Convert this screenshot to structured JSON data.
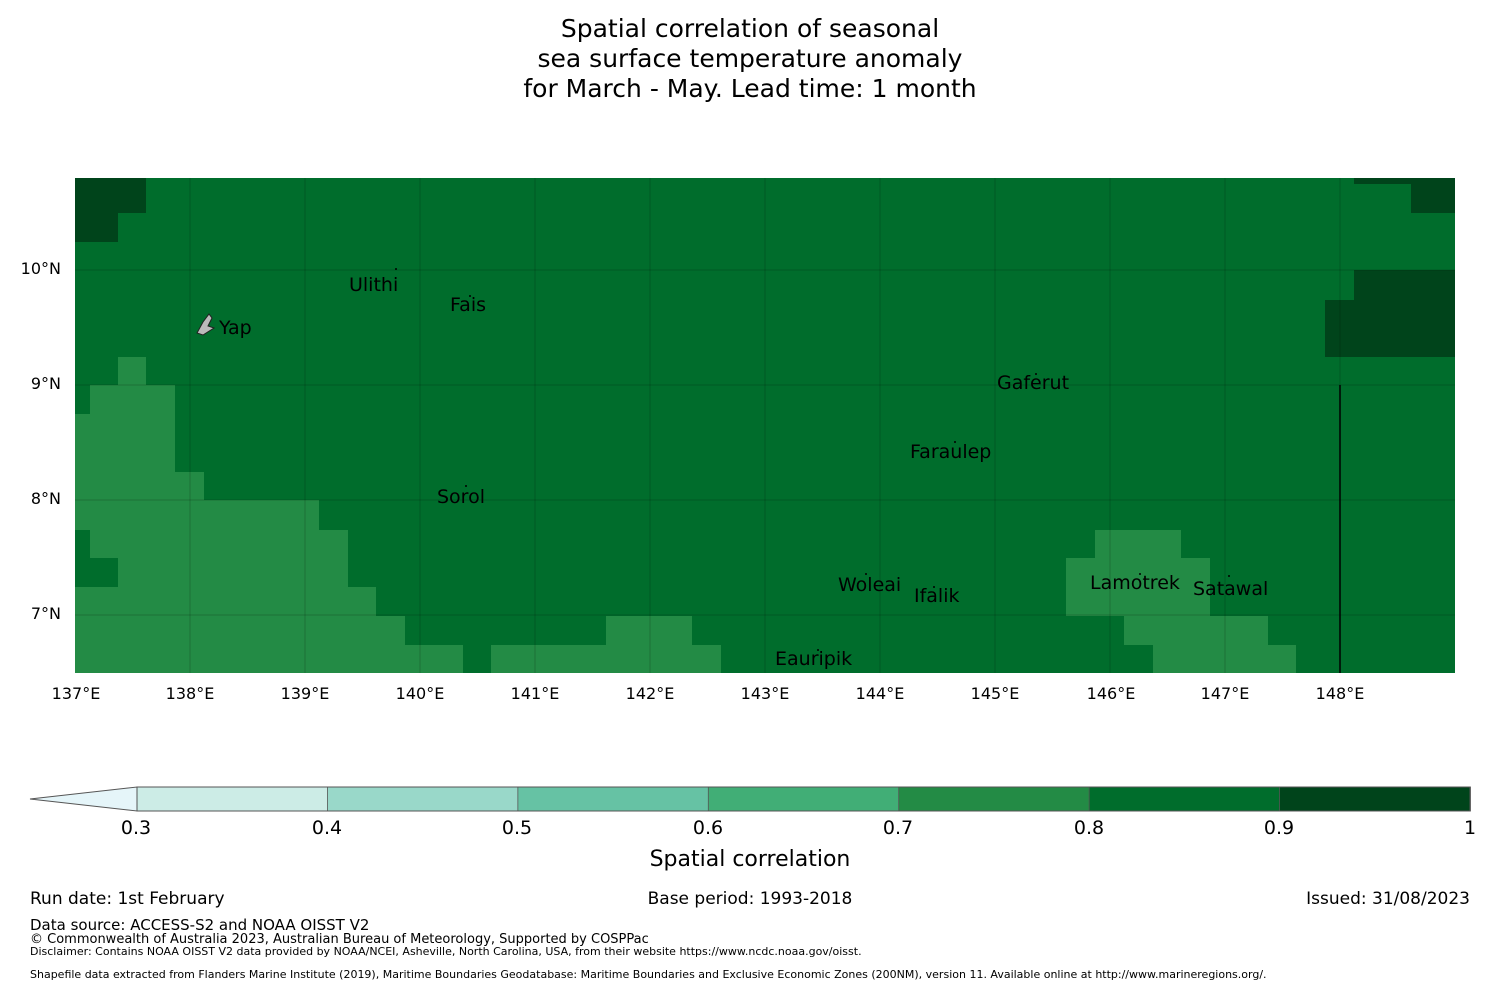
{
  "title": {
    "line1": "Spatial correlation of seasonal",
    "line2": "sea surface temperature anomaly",
    "line3": "for March - May. Lead time: 1 month"
  },
  "map": {
    "lon_range": [
      137,
      149
    ],
    "lat_range": [
      6.5,
      10.8
    ],
    "lat_labels": [
      "10°N",
      "9°N",
      "8°N",
      "7°N"
    ],
    "lon_labels": [
      "137°E",
      "138°E",
      "139°E",
      "140°E",
      "141°E",
      "142°E",
      "143°E",
      "144°E",
      "145°E",
      "146°E",
      "147°E",
      "148°E"
    ],
    "colors": {
      "c07": "#238b45",
      "c08": "#006d2c",
      "c09": "#00441b"
    },
    "places": [
      {
        "name": "Ulithi",
        "lon": 139.7,
        "lat": 9.9
      },
      {
        "name": "Fais",
        "lon": 140.5,
        "lat": 9.75
      },
      {
        "name": "Yap",
        "lon": 138.1,
        "lat": 9.5
      },
      {
        "name": "Gaferut",
        "lon": 145.4,
        "lat": 9.2
      },
      {
        "name": "Faraulep",
        "lon": 144.5,
        "lat": 8.6
      },
      {
        "name": "Sorol",
        "lon": 140.4,
        "lat": 8.1
      },
      {
        "name": "Woleai",
        "lon": 143.9,
        "lat": 7.4
      },
      {
        "name": "Ifalik",
        "lon": 144.45,
        "lat": 7.2
      },
      {
        "name": "Lamotrek",
        "lon": 146.3,
        "lat": 7.4
      },
      {
        "name": "Satawal",
        "lon": 147.0,
        "lat": 7.3
      },
      {
        "name": "Eauripik",
        "lon": 143.0,
        "lat": 6.7
      }
    ]
  },
  "colorbar": {
    "title": "Spatial correlation",
    "ticks": [
      "0.3",
      "0.4",
      "0.5",
      "0.6",
      "0.7",
      "0.8",
      "0.9",
      "1"
    ],
    "under_color": "#e5f5f9",
    "colors": [
      "#ccece6",
      "#99d8c9",
      "#66c2a4",
      "#41ae76",
      "#238b45",
      "#006d2c",
      "#00441b"
    ]
  },
  "footer": {
    "run_date": "Run date: 1st February",
    "base_period": "Base period: 1993-2018",
    "issued": "Issued: 31/08/2023",
    "data_source": "Data source: ACCESS-S2 and NOAA OISST V2",
    "copyright": "© Commonwealth of Australia 2023, Australian Bureau of Meteorology, Supported by COSPPac",
    "disclaimer": "Disclaimer: Contains NOAA OISST V2 data provided by NOAA/NCEI, Asheville, North Carolina, USA, from their website https://www.ncdc.noaa.gov/oisst.",
    "shapefile": "Shapefile data extracted from Flanders Marine Institute (2019), Maritime Boundaries Geodatabase: Maritime Boundaries and Exclusive Economic Zones (200NM), version 11. Available online at http://www.marineregions.org/."
  }
}
